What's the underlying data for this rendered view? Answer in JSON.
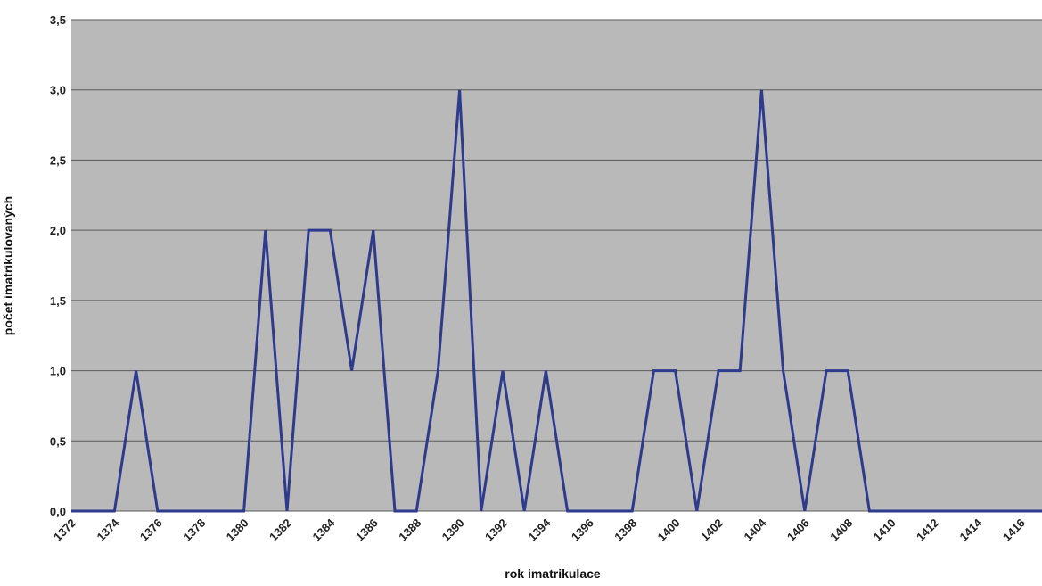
{
  "chart_data": {
    "type": "line",
    "title": "",
    "xlabel": "rok imatrikulace",
    "ylabel": "počet imatrikulovaných",
    "ylim": [
      0,
      3.5
    ],
    "xlim": [
      1372,
      1417
    ],
    "grid": true,
    "y_ticks": [
      "0,0",
      "0,5",
      "1,0",
      "1,5",
      "2,0",
      "2,5",
      "3,0",
      "3,5"
    ],
    "x_ticks": [
      "1372",
      "1374",
      "1376",
      "1378",
      "1380",
      "1382",
      "1384",
      "1386",
      "1388",
      "1390",
      "1392",
      "1394",
      "1396",
      "1398",
      "1400",
      "1402",
      "1404",
      "1406",
      "1408",
      "1410",
      "1412",
      "1414",
      "1416"
    ],
    "x": [
      1372,
      1373,
      1374,
      1375,
      1376,
      1377,
      1378,
      1379,
      1380,
      1381,
      1382,
      1383,
      1384,
      1385,
      1386,
      1387,
      1388,
      1389,
      1390,
      1391,
      1392,
      1393,
      1394,
      1395,
      1396,
      1397,
      1398,
      1399,
      1400,
      1401,
      1402,
      1403,
      1404,
      1405,
      1406,
      1407,
      1408,
      1409,
      1410,
      1411,
      1412,
      1413,
      1414,
      1415,
      1416,
      1417
    ],
    "series": [
      {
        "values": [
          0,
          0,
          0,
          1,
          0,
          0,
          0,
          0,
          0,
          2,
          0,
          2,
          2,
          1,
          2,
          0,
          0,
          1,
          3,
          0,
          1,
          0,
          1,
          0,
          0,
          0,
          0,
          1,
          1,
          0,
          1,
          1,
          3,
          1,
          0,
          1,
          1,
          0,
          0,
          0,
          0,
          0,
          0,
          0,
          0,
          0
        ],
        "color": "#2e3a8c"
      }
    ],
    "colors": {
      "plot_bg": "#b9b9b9",
      "grid": "#5a5a5a",
      "line": "#2e3a8c"
    }
  }
}
